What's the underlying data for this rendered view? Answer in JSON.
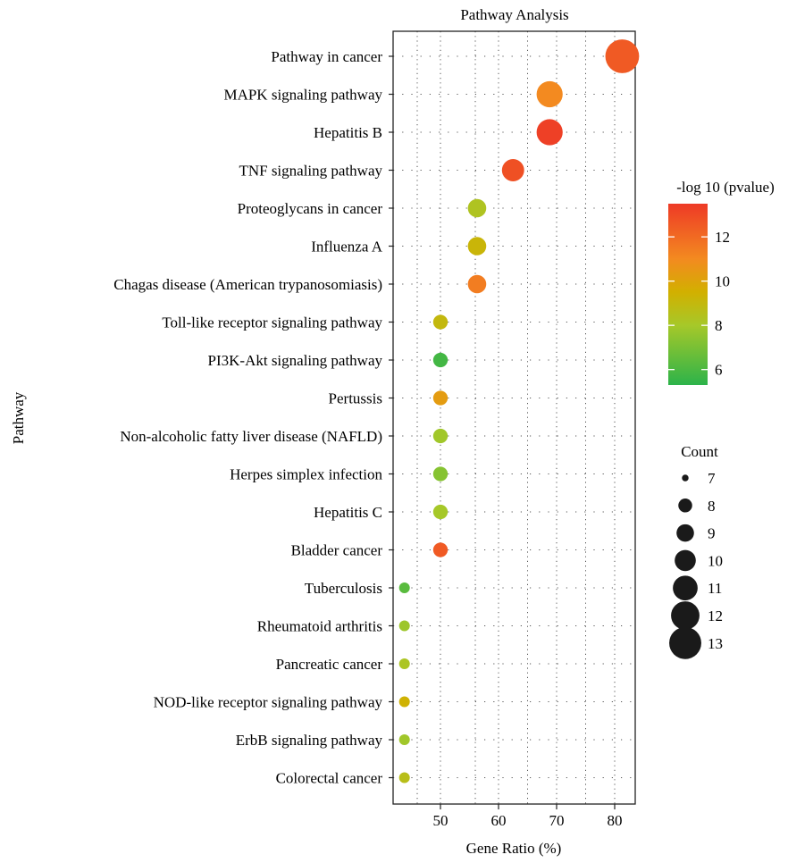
{
  "chart_data": {
    "type": "scatter",
    "title": "Pathway Analysis",
    "xlabel": "Gene Ratio (%)",
    "ylabel": "Pathway",
    "xlim": [
      42,
      84
    ],
    "x_ticks": [
      50,
      60,
      70,
      80
    ],
    "x_gridlines": [
      46,
      50,
      56,
      60,
      65,
      70,
      75,
      80
    ],
    "grid": true,
    "categories": [
      "Pathway in cancer",
      "MAPK signaling pathway",
      "Hepatitis B",
      "TNF signaling pathway",
      "Proteoglycans in cancer",
      "Influenza A",
      "Chagas disease (American trypanosomiasis)",
      "Toll-like receptor signaling pathway",
      "PI3K-Akt signaling pathway",
      "Pertussis",
      "Non-alcoholic fatty liver disease (NAFLD)",
      "Herpes simplex infection",
      "Hepatitis C",
      "Bladder cancer",
      "Tuberculosis",
      "Rheumatoid arthritis",
      "Pancreatic cancer",
      "NOD-like receptor signaling pathway",
      "ErbB signaling pathway",
      "Colorectal cancer"
    ],
    "points": [
      {
        "pathway": "Pathway in cancer",
        "gene_ratio": 81.3,
        "count": 13,
        "neg_log10_pvalue": 12.5
      },
      {
        "pathway": "MAPK signaling pathway",
        "gene_ratio": 68.8,
        "count": 11,
        "neg_log10_pvalue": 11.0
      },
      {
        "pathway": "Hepatitis B",
        "gene_ratio": 68.8,
        "count": 11,
        "neg_log10_pvalue": 13.3
      },
      {
        "pathway": "TNF signaling pathway",
        "gene_ratio": 62.5,
        "count": 10,
        "neg_log10_pvalue": 12.8
      },
      {
        "pathway": "Proteoglycans in cancer",
        "gene_ratio": 56.3,
        "count": 9,
        "neg_log10_pvalue": 8.3
      },
      {
        "pathway": "Influenza A",
        "gene_ratio": 56.3,
        "count": 9,
        "neg_log10_pvalue": 9.2
      },
      {
        "pathway": "Chagas disease (American trypanosomiasis)",
        "gene_ratio": 56.3,
        "count": 9,
        "neg_log10_pvalue": 11.4
      },
      {
        "pathway": "Toll-like receptor signaling pathway",
        "gene_ratio": 50.0,
        "count": 8,
        "neg_log10_pvalue": 9.0
      },
      {
        "pathway": "PI3K-Akt signaling pathway",
        "gene_ratio": 50.0,
        "count": 8,
        "neg_log10_pvalue": 5.8
      },
      {
        "pathway": "Pertussis",
        "gene_ratio": 50.0,
        "count": 8,
        "neg_log10_pvalue": 10.3
      },
      {
        "pathway": "Non-alcoholic fatty liver disease (NAFLD)",
        "gene_ratio": 50.0,
        "count": 8,
        "neg_log10_pvalue": 7.9
      },
      {
        "pathway": "Herpes simplex infection",
        "gene_ratio": 50.0,
        "count": 8,
        "neg_log10_pvalue": 7.3
      },
      {
        "pathway": "Hepatitis C",
        "gene_ratio": 50.0,
        "count": 8,
        "neg_log10_pvalue": 8.0
      },
      {
        "pathway": "Bladder cancer",
        "gene_ratio": 50.0,
        "count": 8,
        "neg_log10_pvalue": 12.5
      },
      {
        "pathway": "Tuberculosis",
        "gene_ratio": 43.8,
        "count": 7,
        "neg_log10_pvalue": 6.3
      },
      {
        "pathway": "Rheumatoid arthritis",
        "gene_ratio": 43.8,
        "count": 7,
        "neg_log10_pvalue": 7.8
      },
      {
        "pathway": "Pancreatic cancer",
        "gene_ratio": 43.8,
        "count": 7,
        "neg_log10_pvalue": 8.2
      },
      {
        "pathway": "NOD-like receptor signaling pathway",
        "gene_ratio": 43.8,
        "count": 7,
        "neg_log10_pvalue": 9.4
      },
      {
        "pathway": "ErbB signaling pathway",
        "gene_ratio": 43.8,
        "count": 7,
        "neg_log10_pvalue": 7.9
      },
      {
        "pathway": "Colorectal cancer",
        "gene_ratio": 43.8,
        "count": 7,
        "neg_log10_pvalue": 8.6
      }
    ],
    "color_legend": {
      "title": "-log 10 (pvalue)",
      "range": [
        5.3,
        13.5
      ],
      "ticks": [
        6,
        8,
        10,
        12
      ],
      "stops": [
        {
          "value": 5.3,
          "color": "#2cb34a"
        },
        {
          "value": 8.0,
          "color": "#a6c829"
        },
        {
          "value": 9.5,
          "color": "#d2b000"
        },
        {
          "value": 11.0,
          "color": "#f38a20"
        },
        {
          "value": 13.5,
          "color": "#ee3a26"
        }
      ]
    },
    "size_legend": {
      "title": "Count",
      "values": [
        7,
        8,
        9,
        10,
        11,
        12,
        13
      ]
    },
    "legend_position": "right"
  }
}
